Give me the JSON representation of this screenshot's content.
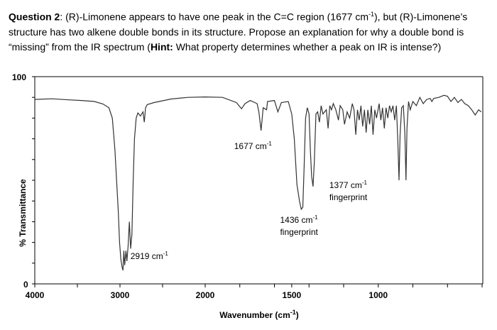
{
  "question": {
    "label": "Question 2",
    "text_1": ": (R)-Limonene appears to have one peak in the C=C region (1677 cm",
    "sup_1": "-1",
    "text_2": "), but (R)-Limonene’s structure has two alkene double bonds in its structure.  Propose an explanation for why a double bond is “missing” from the IR spectrum (",
    "hint_label": "Hint:",
    "hint_text": " What property determines whether a peak on IR is intense?)"
  },
  "chart_data": {
    "type": "line",
    "title": "",
    "xlabel": "Wavenumber (cm",
    "xlabel_sup": "-1",
    "xlabel_end": ")",
    "ylabel": "% Transmittance",
    "xlim": [
      4000,
      400
    ],
    "x_reversed": true,
    "ylim": [
      0,
      100
    ],
    "x_ticks": [
      4000,
      3000,
      2000,
      1500,
      1000
    ],
    "y_ticks": [
      0,
      100
    ],
    "grid": false,
    "series": [
      {
        "color": "#333333",
        "points": [
          [
            4000,
            89
          ],
          [
            3800,
            89.3
          ],
          [
            3600,
            88.8
          ],
          [
            3450,
            88.5
          ],
          [
            3300,
            88
          ],
          [
            3200,
            86.8
          ],
          [
            3130,
            85
          ],
          [
            3090,
            80
          ],
          [
            3060,
            65
          ],
          [
            3040,
            50
          ],
          [
            3020,
            35
          ],
          [
            3005,
            20
          ],
          [
            2990,
            12
          ],
          [
            2975,
            8
          ],
          [
            2965,
            6.5
          ],
          [
            2955,
            16
          ],
          [
            2945,
            9
          ],
          [
            2930,
            16
          ],
          [
            2919,
            11
          ],
          [
            2905,
            18
          ],
          [
            2890,
            30
          ],
          [
            2875,
            17
          ],
          [
            2860,
            24
          ],
          [
            2845,
            50
          ],
          [
            2830,
            70
          ],
          [
            2810,
            80
          ],
          [
            2790,
            82.5
          ],
          [
            2760,
            81
          ],
          [
            2730,
            83
          ],
          [
            2715,
            78
          ],
          [
            2700,
            85
          ],
          [
            2680,
            86.5
          ],
          [
            2600,
            87.5
          ],
          [
            2400,
            89.2
          ],
          [
            2200,
            90
          ],
          [
            2000,
            90.2
          ],
          [
            1900,
            90
          ],
          [
            1820,
            87.5
          ],
          [
            1790,
            84.5
          ],
          [
            1770,
            87
          ],
          [
            1740,
            88.5
          ],
          [
            1700,
            87
          ],
          [
            1690,
            83
          ],
          [
            1677,
            74
          ],
          [
            1665,
            85
          ],
          [
            1645,
            84
          ],
          [
            1640,
            88
          ],
          [
            1600,
            88.5
          ],
          [
            1580,
            83
          ],
          [
            1560,
            87.5
          ],
          [
            1520,
            88
          ],
          [
            1500,
            82
          ],
          [
            1485,
            70
          ],
          [
            1470,
            48
          ],
          [
            1455,
            40
          ],
          [
            1445,
            36
          ],
          [
            1436,
            37
          ],
          [
            1428,
            57
          ],
          [
            1420,
            80
          ],
          [
            1410,
            85
          ],
          [
            1400,
            82
          ],
          [
            1392,
            64
          ],
          [
            1385,
            52
          ],
          [
            1377,
            47
          ],
          [
            1370,
            58
          ],
          [
            1360,
            82
          ],
          [
            1350,
            83
          ],
          [
            1340,
            78
          ],
          [
            1330,
            86
          ],
          [
            1320,
            82
          ],
          [
            1300,
            84
          ],
          [
            1290,
            75
          ],
          [
            1280,
            86
          ],
          [
            1270,
            84
          ],
          [
            1260,
            87
          ],
          [
            1245,
            84
          ],
          [
            1230,
            79
          ],
          [
            1220,
            86
          ],
          [
            1205,
            84
          ],
          [
            1195,
            77
          ],
          [
            1180,
            83
          ],
          [
            1165,
            80
          ],
          [
            1150,
            87
          ],
          [
            1140,
            84
          ],
          [
            1130,
            72
          ],
          [
            1120,
            84
          ],
          [
            1110,
            79
          ],
          [
            1100,
            86
          ],
          [
            1090,
            76
          ],
          [
            1080,
            84
          ],
          [
            1070,
            73
          ],
          [
            1060,
            84
          ],
          [
            1050,
            77
          ],
          [
            1040,
            86
          ],
          [
            1030,
            72
          ],
          [
            1020,
            84
          ],
          [
            1010,
            80
          ],
          [
            995,
            87
          ],
          [
            985,
            79
          ],
          [
            975,
            85
          ],
          [
            965,
            75
          ],
          [
            955,
            85
          ],
          [
            945,
            80
          ],
          [
            935,
            86
          ],
          [
            925,
            83
          ],
          [
            915,
            86
          ],
          [
            905,
            79
          ],
          [
            895,
            86
          ],
          [
            887,
            69
          ],
          [
            880,
            50
          ],
          [
            874,
            72
          ],
          [
            865,
            85
          ],
          [
            855,
            86
          ],
          [
            846,
            72
          ],
          [
            840,
            50
          ],
          [
            834,
            75
          ],
          [
            825,
            88
          ],
          [
            815,
            84
          ],
          [
            800,
            88
          ],
          [
            780,
            86
          ],
          [
            760,
            90
          ],
          [
            740,
            87
          ],
          [
            720,
            89
          ],
          [
            700,
            89.5
          ],
          [
            690,
            88
          ],
          [
            680,
            89.5
          ],
          [
            650,
            90
          ],
          [
            620,
            91
          ],
          [
            600,
            90.5
          ],
          [
            580,
            88
          ],
          [
            560,
            90
          ],
          [
            540,
            87.5
          ],
          [
            520,
            89
          ],
          [
            500,
            87
          ],
          [
            480,
            86
          ],
          [
            460,
            84
          ],
          [
            440,
            81.5
          ],
          [
            420,
            84
          ],
          [
            405,
            83
          ]
        ]
      }
    ],
    "annotations": [
      {
        "x": 1677,
        "y": 74,
        "lines": [
          "1677 cm",
          "-1"
        ]
      },
      {
        "x": 1377,
        "y": 47,
        "lines": [
          "1377 cm",
          "-1",
          "fingerprint"
        ]
      },
      {
        "x": 1436,
        "y": 37,
        "lines": [
          "1436 cm",
          "-1",
          "fingerprint"
        ]
      },
      {
        "x": 2919,
        "y": 11,
        "lines": [
          "2919 cm",
          "-1"
        ]
      }
    ]
  }
}
